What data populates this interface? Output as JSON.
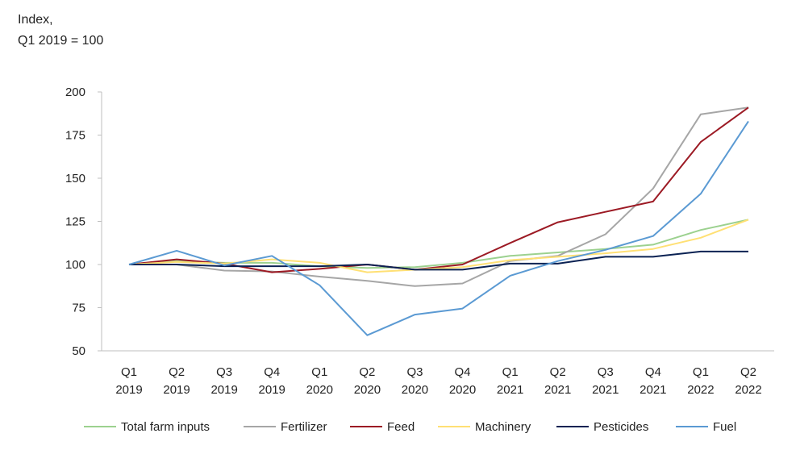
{
  "chart_data": {
    "type": "line",
    "ylabel_lines": [
      "Index,",
      "Q1 2019 = 100"
    ],
    "categories": [
      [
        "Q1",
        "2019"
      ],
      [
        "Q2",
        "2019"
      ],
      [
        "Q3",
        "2019"
      ],
      [
        "Q4",
        "2019"
      ],
      [
        "Q1",
        "2020"
      ],
      [
        "Q2",
        "2020"
      ],
      [
        "Q3",
        "2020"
      ],
      [
        "Q4",
        "2020"
      ],
      [
        "Q1",
        "2021"
      ],
      [
        "Q2",
        "2021"
      ],
      [
        "Q3",
        "2021"
      ],
      [
        "Q4",
        "2021"
      ],
      [
        "Q1",
        "2022"
      ],
      [
        "Q2",
        "2022"
      ]
    ],
    "ylim": [
      50,
      200
    ],
    "yticks": [
      50,
      75,
      100,
      125,
      150,
      175,
      200
    ],
    "grid": false,
    "legend_position": "bottom",
    "series": [
      {
        "name": "Total farm inputs",
        "color": "#9cd18f",
        "values": [
          100,
          102,
          101,
          101,
          99,
          98,
          98.5,
          101,
          105,
          107,
          109,
          111.5,
          120,
          126
        ]
      },
      {
        "name": "Fertilizer",
        "color": "#a6a6a6",
        "values": [
          100,
          100,
          96.5,
          96,
          93,
          90.5,
          87.5,
          89,
          102,
          105,
          117.5,
          144,
          187,
          191
        ]
      },
      {
        "name": "Feed",
        "color": "#9c1a24",
        "values": [
          100,
          103,
          100.5,
          95.5,
          97.5,
          100,
          97,
          100,
          112.5,
          124.5,
          130.5,
          136.5,
          171,
          191
        ]
      },
      {
        "name": "Machinery",
        "color": "#ffe074",
        "values": [
          100,
          101.5,
          100.5,
          103,
          101,
          95.5,
          97,
          98.5,
          102.5,
          104.5,
          106.5,
          109,
          115.5,
          126
        ]
      },
      {
        "name": "Pesticides",
        "color": "#0b2253",
        "values": [
          100,
          100,
          99,
          99,
          99,
          100,
          97,
          97,
          100.5,
          100.5,
          104.5,
          104.5,
          107.5,
          107.5
        ]
      },
      {
        "name": "Fuel",
        "color": "#5b9ad3",
        "values": [
          100,
          108,
          99.5,
          105,
          88,
          59,
          71,
          74.5,
          93.5,
          102,
          108.5,
          116.5,
          141,
          183
        ]
      }
    ]
  }
}
